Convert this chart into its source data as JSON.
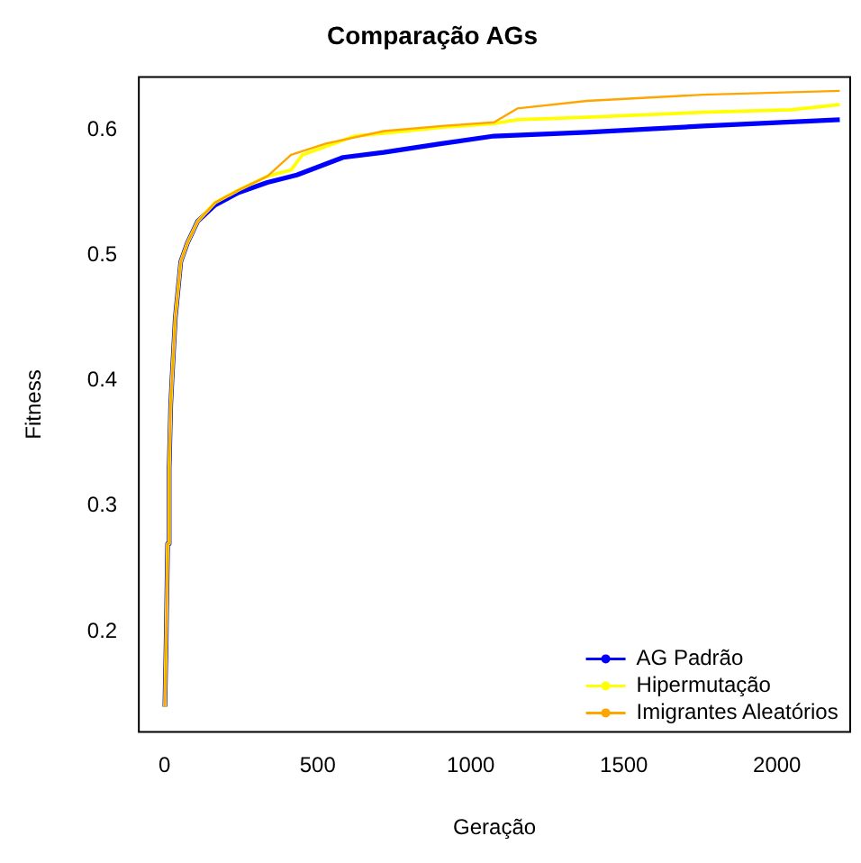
{
  "chart_data": {
    "type": "line",
    "title": "Comparação AGs",
    "xlabel": "Geração",
    "ylabel": "Fitness",
    "xlim": [
      -84,
      2239
    ],
    "xticks": [
      0,
      500,
      1000,
      1500,
      2000
    ],
    "ylim": [
      0.12,
      0.642
    ],
    "yticks": [
      0.2,
      0.3,
      0.4,
      0.5,
      0.6
    ],
    "grid": false,
    "legend": "bottom right",
    "marker": "none",
    "line_style": "solid",
    "series": [
      {
        "name": "AG Padrão",
        "color": "#0000ff",
        "x": [
          1,
          5,
          10,
          15,
          20,
          24,
          35,
          53,
          75,
          108,
          165,
          242,
          336,
          432,
          583,
          716,
          905,
          1076,
          1379,
          1758,
          2205
        ],
        "values": [
          0.14,
          0.19,
          0.27,
          0.33,
          0.38,
          0.4,
          0.45,
          0.495,
          0.51,
          0.527,
          0.54,
          0.55,
          0.558,
          0.564,
          0.578,
          0.582,
          0.589,
          0.595,
          0.598,
          0.603,
          0.608
        ]
      },
      {
        "name": "Hipermutação",
        "color": "#ffff00",
        "x": [
          1,
          5,
          10,
          15,
          20,
          24,
          35,
          53,
          75,
          108,
          165,
          242,
          336,
          413,
          450,
          621,
          905,
          1076,
          1152,
          1379,
          1758,
          2045,
          2205
        ],
        "values": [
          0.14,
          0.19,
          0.27,
          0.33,
          0.38,
          0.4,
          0.45,
          0.495,
          0.51,
          0.527,
          0.542,
          0.552,
          0.563,
          0.568,
          0.58,
          0.595,
          0.602,
          0.605,
          0.608,
          0.61,
          0.614,
          0.616,
          0.62
        ]
      },
      {
        "name": "Imigrantes Aleatórios",
        "color": "#ffa500",
        "x": [
          1,
          5,
          10,
          15,
          20,
          24,
          35,
          53,
          75,
          108,
          165,
          242,
          336,
          413,
          527,
          716,
          905,
          1076,
          1152,
          1379,
          1758,
          2205
        ],
        "values": [
          0.14,
          0.19,
          0.27,
          0.33,
          0.38,
          0.4,
          0.45,
          0.495,
          0.51,
          0.527,
          0.542,
          0.552,
          0.563,
          0.58,
          0.589,
          0.599,
          0.603,
          0.606,
          0.617,
          0.623,
          0.628,
          0.631
        ]
      }
    ]
  }
}
